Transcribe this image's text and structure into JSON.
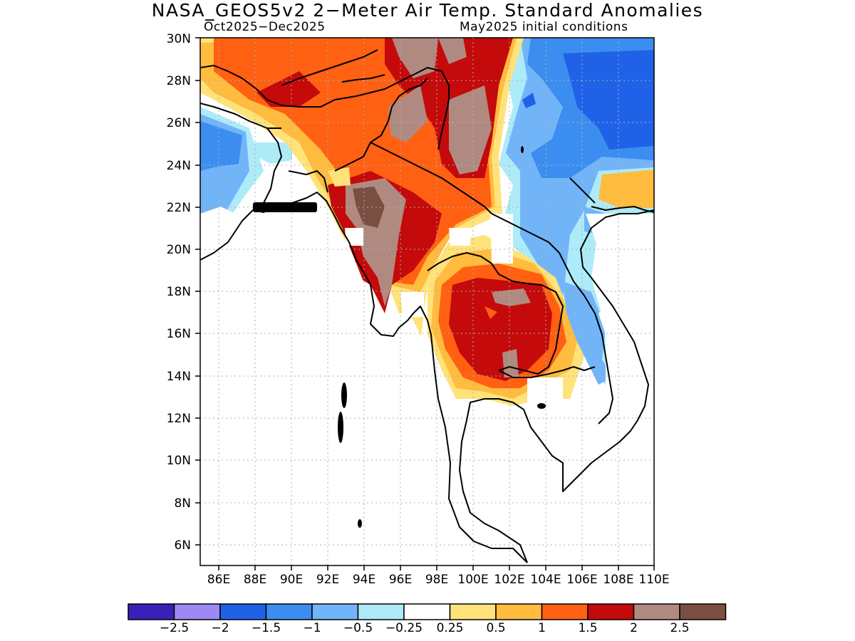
{
  "title": "NASA_GEOS5v2 2−Meter Air Temp. Standard Anomalies",
  "subtitle_left": "Oct2025−Dec2025",
  "subtitle_right": "May2025 initial conditions",
  "latitude_labels": [
    "30N",
    "28N",
    "26N",
    "24N",
    "22N",
    "20N",
    "18N",
    "16N",
    "14N",
    "12N",
    "10N",
    "8N",
    "6N"
  ],
  "longitude_labels": [
    "86E",
    "88E",
    "90E",
    "92E",
    "94E",
    "96E",
    "98E",
    "100E",
    "102E",
    "104E",
    "106E",
    "108E",
    "110E"
  ],
  "legend": {
    "colors": [
      "#3a20b8",
      "#9d88f4",
      "#1f62e8",
      "#3b8ef0",
      "#72b4f8",
      "#aeebf8",
      "#ffffff",
      "#ffe27a",
      "#ffbc3e",
      "#ff6012",
      "#c40a0a",
      "#b08a80",
      "#7a4e40"
    ],
    "labels": [
      "−2.5",
      "−2",
      "−1.5",
      "−1",
      "−0.5",
      "−0.25",
      "0.25",
      "0.5",
      "1",
      "1.5",
      "2",
      "2.5"
    ]
  }
}
